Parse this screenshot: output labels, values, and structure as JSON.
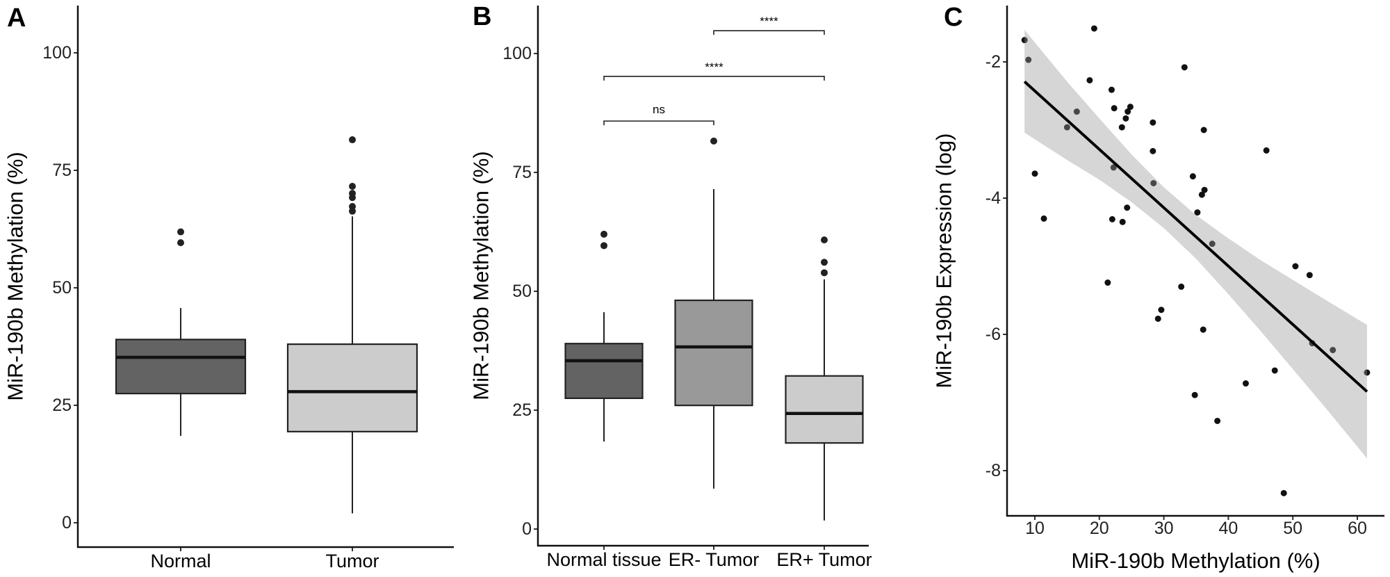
{
  "chart_data": [
    {
      "panel": "A",
      "type": "box",
      "xlabel": "",
      "ylabel": "MiR-190b Methylation (%)",
      "categories": [
        "Normal",
        "Tumor"
      ],
      "ylim": [
        -5,
        110
      ],
      "yticks": [
        0,
        25,
        50,
        75,
        100
      ],
      "grid": false,
      "boxes": [
        {
          "category": "Normal",
          "whisker_low": 18.5,
          "q1": 27.5,
          "median": 35.2,
          "q3": 39.0,
          "whisker_high": 45.7,
          "outliers": [
            59.6,
            61.9
          ],
          "fill": "#636363"
        },
        {
          "category": "Tumor",
          "whisker_low": 2.0,
          "q1": 19.4,
          "median": 27.9,
          "q3": 38.0,
          "whisker_high": 65.2,
          "outliers": [
            66.3,
            67.3,
            69.2,
            70.1,
            71.6,
            81.5
          ],
          "fill": "#cccccc"
        }
      ]
    },
    {
      "panel": "B",
      "type": "box",
      "xlabel": "",
      "ylabel": "MiR-190b Methylation (%)",
      "categories": [
        "Normal tissue",
        "ER- Tumor",
        "ER+ Tumor"
      ],
      "ylim": [
        -3.5,
        110
      ],
      "yticks": [
        0,
        25,
        50,
        75,
        100
      ],
      "grid": false,
      "boxes": [
        {
          "category": "Normal tissue",
          "whisker_low": 18.4,
          "q1": 27.5,
          "median": 35.4,
          "q3": 39.0,
          "whisker_high": 45.6,
          "outliers": [
            59.6,
            62.0
          ],
          "fill": "#636363"
        },
        {
          "category": "ER- Tumor",
          "whisker_low": 8.5,
          "q1": 26.0,
          "median": 38.3,
          "q3": 48.1,
          "whisker_high": 71.5,
          "outliers": [
            81.6
          ],
          "fill": "#999999"
        },
        {
          "category": "ER+ Tumor",
          "whisker_low": 1.8,
          "q1": 18.1,
          "median": 24.3,
          "q3": 32.2,
          "whisker_high": 52.5,
          "outliers": [
            53.9,
            56.1,
            60.8
          ],
          "fill": "#cccccc"
        }
      ],
      "comparisons": [
        {
          "from": 0,
          "to": 1,
          "label": "ns",
          "y": 85.8
        },
        {
          "from": 0,
          "to": 2,
          "label": "****",
          "y": 95.2
        },
        {
          "from": 1,
          "to": 2,
          "label": "****",
          "y": 104.8
        }
      ]
    },
    {
      "panel": "C",
      "type": "scatter",
      "xlabel": "MiR-190b Methylation (%)",
      "ylabel": "MiR-190b Expression (log)",
      "xlim": [
        5.7,
        64.2
      ],
      "ylim": [
        -8.66,
        -1.17
      ],
      "xticks": [
        10,
        20,
        30,
        40,
        50,
        60
      ],
      "yticks": [
        -2,
        -4,
        -6,
        -8
      ],
      "grid": false,
      "points": [
        [
          8.4,
          -1.68
        ],
        [
          9.0,
          -1.97
        ],
        [
          19.2,
          -1.51
        ],
        [
          18.5,
          -2.27
        ],
        [
          21.9,
          -2.41
        ],
        [
          22.3,
          -2.68
        ],
        [
          24.8,
          -2.66
        ],
        [
          24.4,
          -2.73
        ],
        [
          24.1,
          -2.83
        ],
        [
          23.5,
          -2.96
        ],
        [
          28.3,
          -2.89
        ],
        [
          28.3,
          -3.31
        ],
        [
          33.2,
          -2.08
        ],
        [
          16.5,
          -2.73
        ],
        [
          15.0,
          -2.96
        ],
        [
          22.2,
          -3.55
        ],
        [
          10.0,
          -3.64
        ],
        [
          34.5,
          -3.68
        ],
        [
          36.2,
          -3.0
        ],
        [
          45.9,
          -3.3
        ],
        [
          28.4,
          -3.78
        ],
        [
          24.3,
          -4.14
        ],
        [
          11.4,
          -4.3
        ],
        [
          22.0,
          -4.31
        ],
        [
          23.6,
          -4.35
        ],
        [
          21.3,
          -5.24
        ],
        [
          32.7,
          -5.3
        ],
        [
          29.6,
          -5.64
        ],
        [
          29.1,
          -5.77
        ],
        [
          36.3,
          -3.88
        ],
        [
          35.9,
          -3.95
        ],
        [
          35.2,
          -4.21
        ],
        [
          37.5,
          -4.67
        ],
        [
          50.4,
          -5.0
        ],
        [
          52.6,
          -5.13
        ],
        [
          36.1,
          -5.93
        ],
        [
          53.0,
          -6.13
        ],
        [
          56.2,
          -6.23
        ],
        [
          34.8,
          -6.89
        ],
        [
          38.3,
          -7.27
        ],
        [
          42.7,
          -6.72
        ],
        [
          47.2,
          -6.53
        ],
        [
          48.6,
          -8.33
        ],
        [
          61.5,
          -6.56
        ]
      ],
      "fit": {
        "x": [
          8.4,
          61.5
        ],
        "y": [
          -2.29,
          -6.84
        ]
      },
      "ci": {
        "x": [
          8.4,
          15,
          20,
          25,
          30,
          35,
          40,
          45,
          50,
          55,
          61.5
        ],
        "lower": [
          -3.04,
          -3.44,
          -3.73,
          -4.06,
          -4.44,
          -4.89,
          -5.41,
          -5.95,
          -6.51,
          -7.07,
          -7.82
        ],
        "upper": [
          -1.53,
          -2.29,
          -2.83,
          -3.36,
          -3.84,
          -4.25,
          -4.59,
          -4.91,
          -5.2,
          -5.49,
          -5.86
        ]
      },
      "colors": {
        "points": "#111111",
        "band": "#999999",
        "line": "#000000"
      }
    }
  ]
}
